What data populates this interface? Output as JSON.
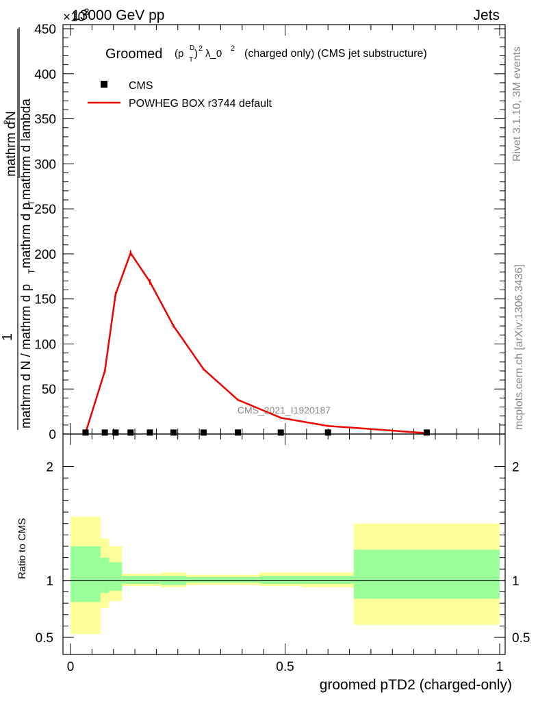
{
  "header": {
    "left": "13000 GeV pp",
    "right": "Jets",
    "exponent_prefix": "×10",
    "exponent_power": "-3"
  },
  "side_text": {
    "rivet": "Rivet 3.1.10,  3M events",
    "mcplots": "mcplots.cern.ch [arXiv:1306.3436]"
  },
  "watermark": "CMS_2021_I1920187",
  "title_parts": {
    "groomed": "Groomed",
    "p": "(p",
    "sub_t": "T",
    "sup_d": "D",
    "close": ")",
    "sup_2a": "2",
    "lambda": "λ_0",
    "sup_2b": "2",
    "rest": "(charged only) (CMS jet substructure)"
  },
  "legend": {
    "data_label": "CMS",
    "mc_label": "POWHEG BOX r3744 default"
  },
  "ylabel_parts": {
    "numerator": "1",
    "frac_left": "mathrm d N / mathrm d p",
    "frac_left_sub": "T",
    "frac_left_tail": "mathrm d p",
    "frac_left_sub2": "T",
    "frac_left_end": " mathrm d lambda",
    "big_top": "mathrm d",
    "big_top_sup": "2",
    "big_top_n": "N",
    "big_bottom": "mathrm d p",
    "big_bottom_sub": "T",
    "big_bottom_end": " mathrm d lambda"
  },
  "ratio_ylabel": "Ratio to CMS",
  "xlabel": "groomed pTD2 (charged-only)",
  "colors": {
    "mc_line": "#ee0000",
    "band_inner": "#99ff99",
    "band_outer": "#ffff99",
    "data_marker": "#000000",
    "grey_text": "#888888"
  },
  "chart_data": [
    {
      "type": "line",
      "title": "Groomed (p_T^D)^2 λ_0^2 (charged only) (CMS jet substructure)",
      "xlim": [
        0,
        1
      ],
      "ylim": [
        0,
        450
      ],
      "y_scale_note": "×10^-3",
      "yticks": [
        0,
        50,
        100,
        150,
        200,
        250,
        300,
        350,
        400,
        450
      ],
      "series": [
        {
          "name": "CMS",
          "kind": "points",
          "x": [
            0.035,
            0.08,
            0.105,
            0.14,
            0.185,
            0.24,
            0.31,
            0.39,
            0.49,
            0.6,
            0.83
          ],
          "y": [
            0.5,
            0.5,
            0.5,
            0.5,
            0.5,
            0.5,
            0.5,
            0.5,
            0.5,
            0.5,
            0.5
          ]
        },
        {
          "name": "POWHEG BOX r3744 default",
          "kind": "line",
          "x": [
            0.035,
            0.08,
            0.105,
            0.14,
            0.185,
            0.24,
            0.31,
            0.39,
            0.49,
            0.6,
            0.83
          ],
          "y": [
            1,
            70,
            155,
            201,
            169,
            120,
            72,
            38,
            18,
            9,
            1
          ],
          "yerr": [
            0.5,
            2,
            3,
            3,
            3,
            2,
            1.5,
            1,
            0.5,
            0.5,
            0.3
          ]
        }
      ]
    },
    {
      "type": "area",
      "ylabel": "Ratio to CMS",
      "xlabel": "groomed pTD2 (charged-only)",
      "xlim": [
        0,
        1
      ],
      "ylim": [
        0.35,
        2.25
      ],
      "yticks": [
        0.5,
        1,
        2
      ],
      "xticks": [
        0,
        0.5,
        1
      ],
      "reference_line": 1,
      "bins": [
        {
          "x0": 0.0,
          "x1": 0.07,
          "inner": [
            0.81,
            1.3
          ],
          "outer": [
            0.53,
            1.56
          ]
        },
        {
          "x0": 0.07,
          "x1": 0.09,
          "inner": [
            0.89,
            1.2
          ],
          "outer": [
            0.76,
            1.37
          ]
        },
        {
          "x0": 0.09,
          "x1": 0.12,
          "inner": [
            0.91,
            1.16
          ],
          "outer": [
            0.82,
            1.3
          ]
        },
        {
          "x0": 0.12,
          "x1": 0.21,
          "inner": [
            0.97,
            1.04
          ],
          "outer": [
            0.95,
            1.06
          ]
        },
        {
          "x0": 0.21,
          "x1": 0.27,
          "inner": [
            0.96,
            1.04
          ],
          "outer": [
            0.94,
            1.07
          ]
        },
        {
          "x0": 0.27,
          "x1": 0.44,
          "inner": [
            0.98,
            1.03
          ],
          "outer": [
            0.96,
            1.05
          ]
        },
        {
          "x0": 0.44,
          "x1": 0.54,
          "inner": [
            0.97,
            1.04
          ],
          "outer": [
            0.95,
            1.07
          ]
        },
        {
          "x0": 0.54,
          "x1": 0.66,
          "inner": [
            0.97,
            1.04
          ],
          "outer": [
            0.94,
            1.07
          ]
        },
        {
          "x0": 0.66,
          "x1": 1.0,
          "inner": [
            0.84,
            1.27
          ],
          "outer": [
            0.61,
            1.5
          ]
        }
      ]
    }
  ]
}
